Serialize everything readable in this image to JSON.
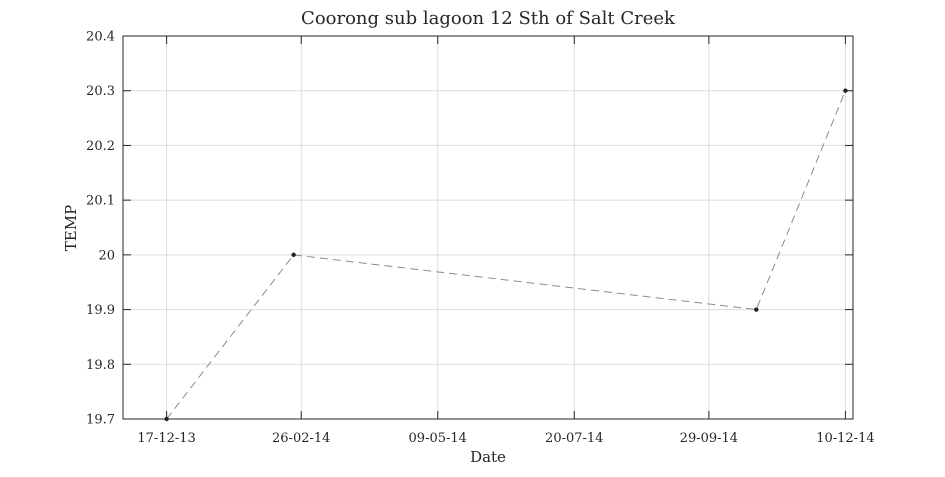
{
  "chart_data": {
    "type": "line",
    "title": "Coorong sub lagoon 12 Sth of Salt Creek",
    "xlabel": "Date",
    "ylabel": "TEMP",
    "x_axis_type": "date",
    "xlim": [
      "2013-11-24",
      "2014-12-14"
    ],
    "ylim": [
      19.7,
      20.4
    ],
    "x_ticks": [
      {
        "date": "2013-12-17",
        "label": "17-12-13"
      },
      {
        "date": "2014-02-26",
        "label": "26-02-14"
      },
      {
        "date": "2014-05-09",
        "label": "09-05-14"
      },
      {
        "date": "2014-07-20",
        "label": "20-07-14"
      },
      {
        "date": "2014-09-29",
        "label": "29-09-14"
      },
      {
        "date": "2014-12-10",
        "label": "10-12-14"
      }
    ],
    "y_ticks": [
      {
        "value": 19.7,
        "label": "19.7"
      },
      {
        "value": 19.8,
        "label": "19.8"
      },
      {
        "value": 19.9,
        "label": "19.9"
      },
      {
        "value": 20.0,
        "label": "20"
      },
      {
        "value": 20.1,
        "label": "20.1"
      },
      {
        "value": 20.2,
        "label": "20.2"
      },
      {
        "value": 20.3,
        "label": "20.3"
      },
      {
        "value": 20.4,
        "label": "20.4"
      }
    ],
    "grid": true,
    "series": [
      {
        "line_style": "dashed",
        "color": "#8c8c8c",
        "marker_color": "#222222",
        "points": [
          {
            "x": "2013-12-17",
            "y": 19.7
          },
          {
            "x": "2014-02-22",
            "y": 20.0
          },
          {
            "x": "2014-10-24",
            "y": 19.9
          },
          {
            "x": "2014-12-10",
            "y": 20.3
          }
        ]
      }
    ]
  }
}
